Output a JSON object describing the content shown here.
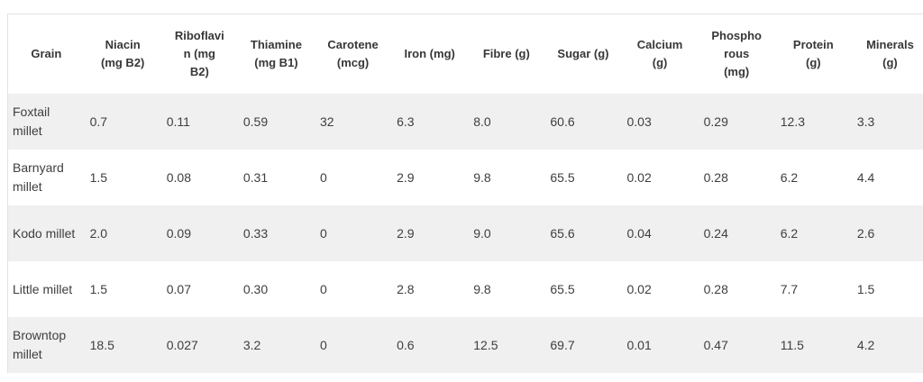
{
  "colors": {
    "page_bg": "#ffffff",
    "stripe_row_bg": "#f0f0f0",
    "table_border": "#e2e2e2",
    "header_text": "#373737",
    "body_text": "#3e3e3e"
  },
  "display": {
    "headers": [
      "Grain",
      "Niacin\n(mg B2)",
      "Riboflavi\nn (mg\nB2)",
      "Thiamine\n(mg B1)",
      "Carotene\n(mcg)",
      "Iron (mg)",
      "Fibre (g)",
      "Sugar (g)",
      "Calcium\n(g)",
      "Phospho\nrous\n(mg)",
      "Protein\n(g)",
      "Minerals\n(g)"
    ],
    "rows": [
      [
        "Foxtail millet",
        "0.7",
        "0.11",
        "0.59",
        "32",
        "6.3",
        "8.0",
        "60.6",
        "0.03",
        "0.29",
        "12.3",
        "3.3"
      ],
      [
        "Barnyard millet",
        "1.5",
        "0.08",
        "0.31",
        "0",
        "2.9",
        "9.8",
        "65.5",
        "0.02",
        "0.28",
        "6.2",
        "4.4"
      ],
      [
        "Kodo millet",
        "2.0",
        "0.09",
        "0.33",
        "0",
        "2.9",
        "9.0",
        "65.6",
        "0.04",
        "0.24",
        "6.2",
        "2.6"
      ],
      [
        "Little millet",
        "1.5",
        "0.07",
        "0.30",
        "0",
        "2.8",
        "9.8",
        "65.5",
        "0.02",
        "0.28",
        "7.7",
        "1.5"
      ],
      [
        "Browntop millet",
        "18.5",
        "0.027",
        "3.2",
        "0",
        "0.6",
        "12.5",
        "69.7",
        "0.01",
        "0.47",
        "11.5",
        "4.2"
      ]
    ]
  },
  "chart_data": {
    "type": "table",
    "columns": [
      "Grain",
      "Niacin (mg B2)",
      "Riboflavin (mg B2)",
      "Thiamine (mg B1)",
      "Carotene (mcg)",
      "Iron (mg)",
      "Fibre (g)",
      "Sugar (g)",
      "Calcium (g)",
      "Phosphorous (mg)",
      "Protein (g)",
      "Minerals (g)"
    ],
    "rows": [
      [
        "Foxtail millet",
        0.7,
        0.11,
        0.59,
        32,
        6.3,
        8.0,
        60.6,
        0.03,
        0.29,
        12.3,
        3.3
      ],
      [
        "Barnyard millet",
        1.5,
        0.08,
        0.31,
        0,
        2.9,
        9.8,
        65.5,
        0.02,
        0.28,
        6.2,
        4.4
      ],
      [
        "Kodo millet",
        2.0,
        0.09,
        0.33,
        0,
        2.9,
        9.0,
        65.6,
        0.04,
        0.24,
        6.2,
        2.6
      ],
      [
        "Little millet",
        1.5,
        0.07,
        0.3,
        0,
        2.8,
        9.8,
        65.5,
        0.02,
        0.28,
        7.7,
        1.5
      ],
      [
        "Browntop millet",
        18.5,
        0.027,
        3.2,
        0,
        0.6,
        12.5,
        69.7,
        0.01,
        0.47,
        11.5,
        4.2
      ]
    ],
    "layout": {
      "striped_rows": "odd data rows shaded",
      "header_align": "center",
      "cell_align": "left"
    }
  }
}
